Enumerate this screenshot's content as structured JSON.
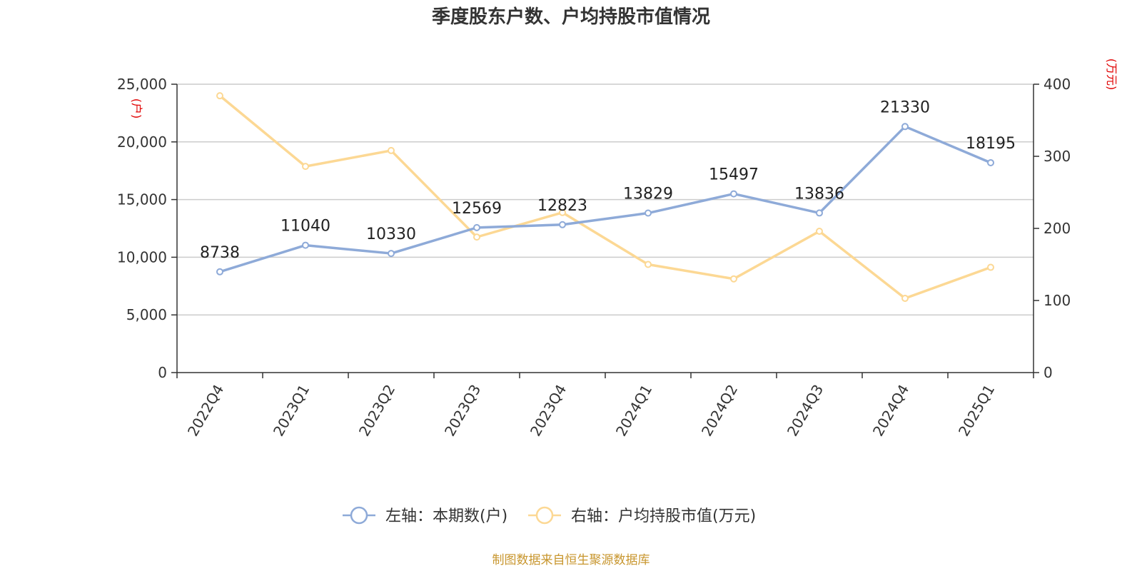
{
  "title": "季度股东户数、户均持股市值情况",
  "source": "制图数据来自恒生聚源数据库",
  "colors": {
    "series1": "#8eaad8",
    "series2": "#fcd894",
    "unit": "#e00000",
    "source": "#c8962e"
  },
  "chart_data": {
    "type": "line",
    "categories": [
      "2022Q4",
      "2023Q1",
      "2023Q2",
      "2023Q3",
      "2023Q4",
      "2024Q1",
      "2024Q2",
      "2024Q3",
      "2024Q4",
      "2025Q1"
    ],
    "left_axis": {
      "unit": "(户)",
      "range": [
        0,
        25000
      ],
      "ticks": [
        "0",
        "5,000",
        "10,000",
        "15,000",
        "20,000",
        "25,000"
      ]
    },
    "right_axis": {
      "unit": "(万元)",
      "range": [
        0,
        400
      ],
      "ticks": [
        "0",
        "100",
        "200",
        "300",
        "400"
      ]
    },
    "grid": true,
    "legend_position": "bottom",
    "series": [
      {
        "name": "左轴：本期数(户)",
        "axis": "left",
        "values": [
          8738,
          11040,
          10330,
          12569,
          12823,
          13829,
          15497,
          13836,
          21330,
          18195
        ],
        "labels": [
          "8738",
          "11040",
          "10330",
          "12569",
          "12823",
          "13829",
          "15497",
          "13836",
          "21330",
          "18195"
        ]
      },
      {
        "name": "右轴：户均持股市值(万元)",
        "axis": "right",
        "values": [
          384,
          286,
          308,
          188,
          222,
          150,
          130,
          196,
          103,
          146
        ]
      }
    ]
  }
}
